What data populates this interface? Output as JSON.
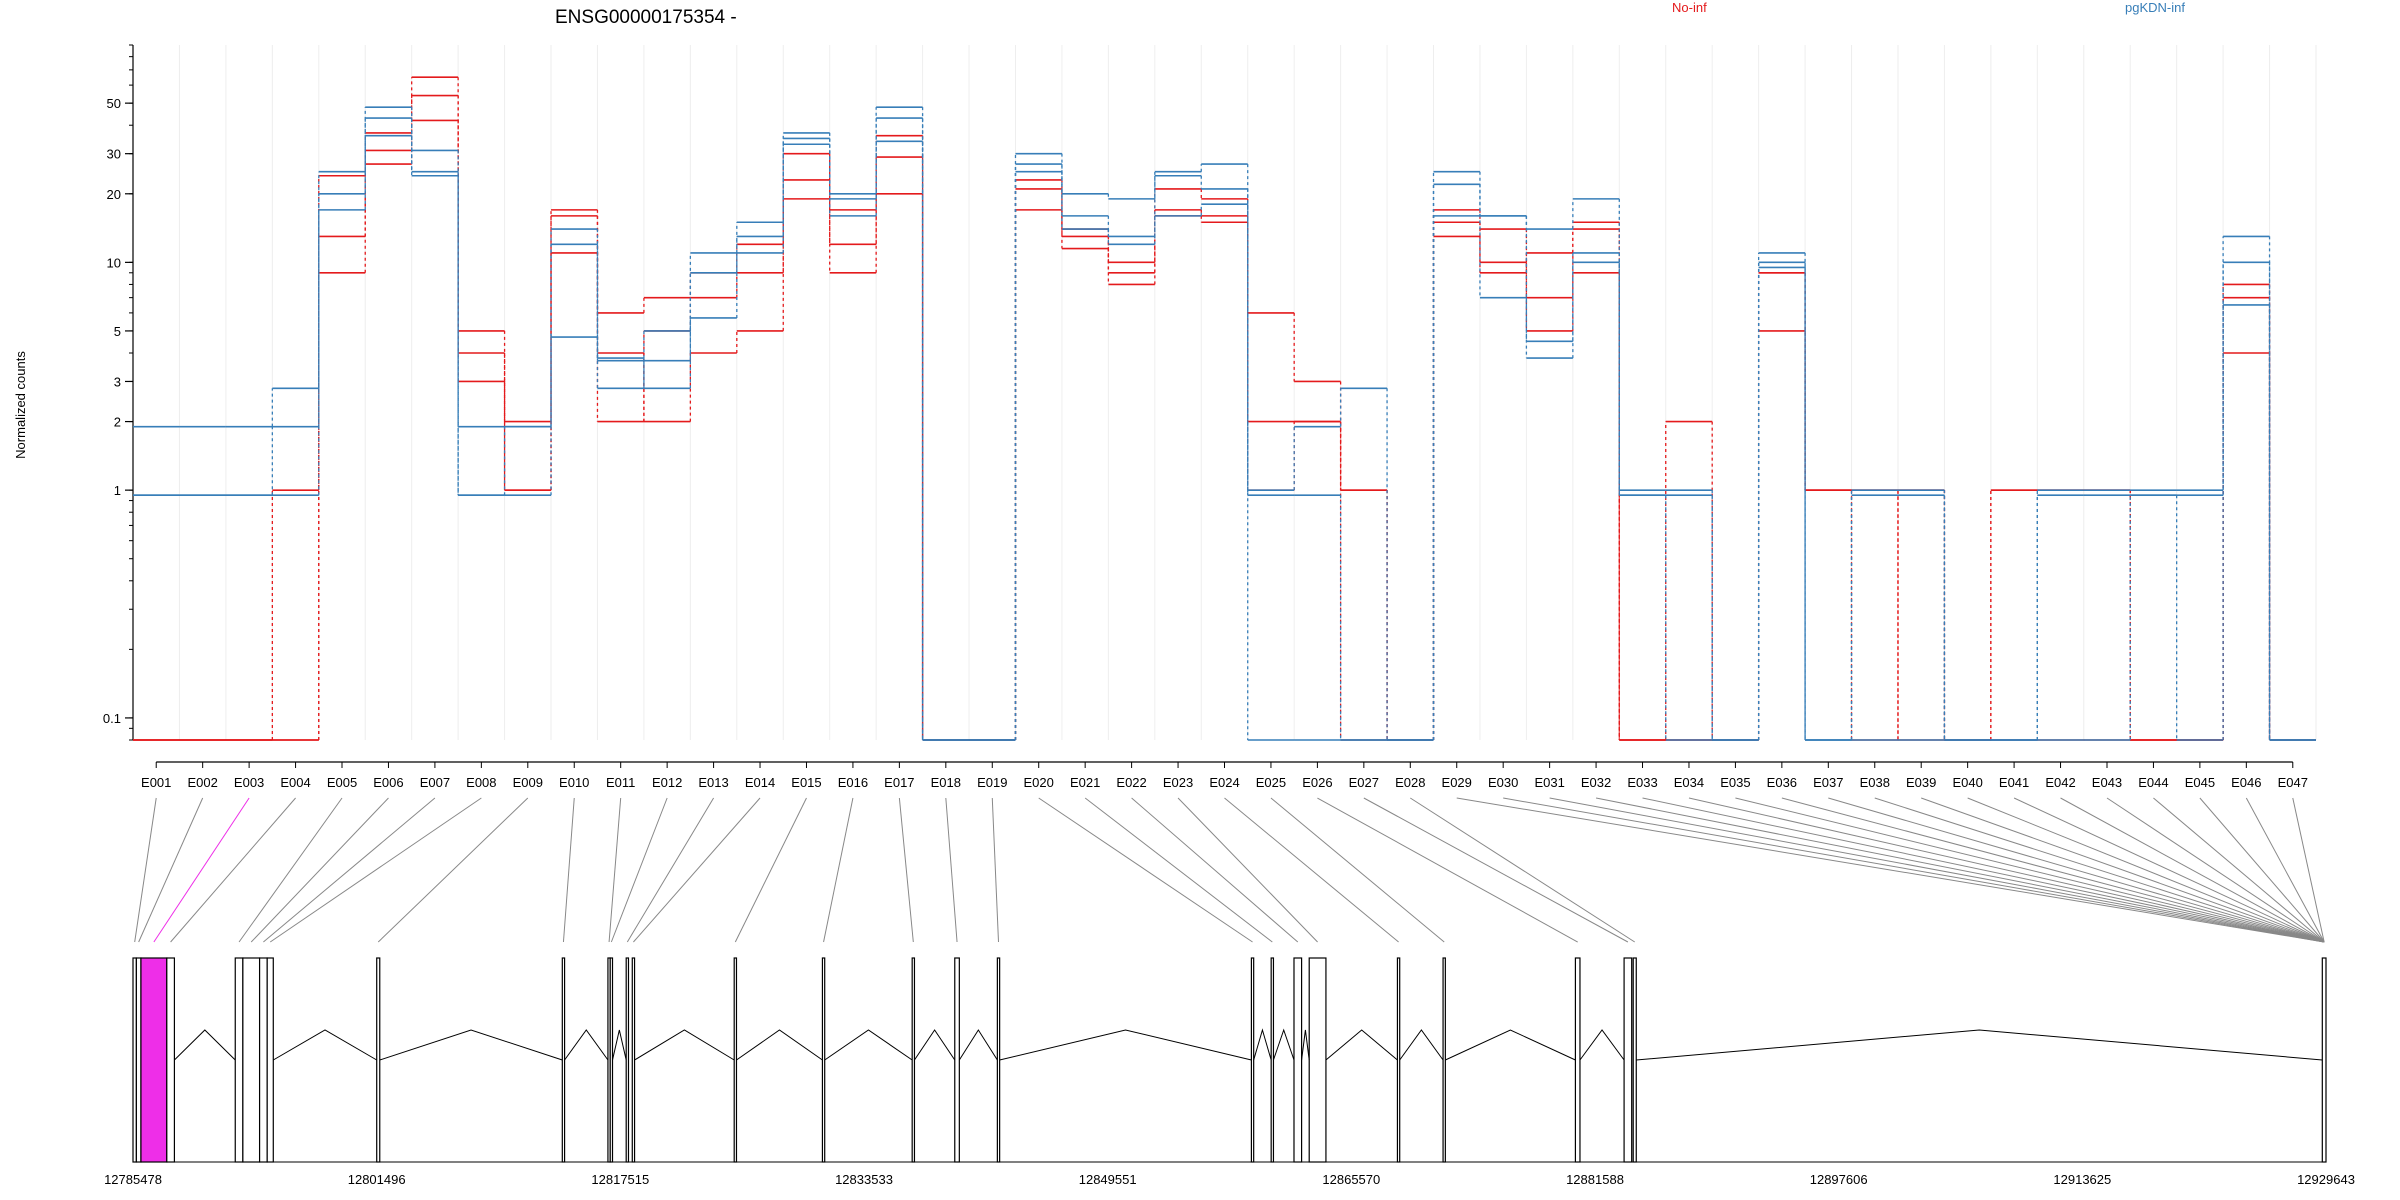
{
  "title": "ENSG00000175354 -",
  "ylabel": "Normalized counts",
  "legend": [
    {
      "label": "No-inf",
      "color": "#e41a1c"
    },
    {
      "label": "pgKDN-inf",
      "color": "#377eb8"
    }
  ],
  "colors": {
    "no_inf": "#e41a1c",
    "pgkdn_inf": "#377eb8",
    "highlight": "#ee2ee8",
    "gene_line": "#000000"
  },
  "chart_data": {
    "type": "line",
    "title": "ENSG00000175354 -",
    "ylabel": "Normalized counts",
    "yscale": "log",
    "ylim": [
      0.08,
      90
    ],
    "grid": "vertical",
    "legend_placement": "top",
    "yticks": [
      {
        "value": 0.1,
        "label": "0.1"
      },
      {
        "value": 1,
        "label": "1"
      },
      {
        "value": 2,
        "label": "2"
      },
      {
        "value": 3,
        "label": "3"
      },
      {
        "value": 5,
        "label": "5"
      },
      {
        "value": 10,
        "label": "10"
      },
      {
        "value": 20,
        "label": "20"
      },
      {
        "value": 30,
        "label": "30"
      },
      {
        "value": 50,
        "label": "50"
      }
    ],
    "categories": [
      "E001",
      "E002",
      "E003",
      "E004",
      "E005",
      "E006",
      "E007",
      "E008",
      "E009",
      "E010",
      "E011",
      "E012",
      "E013",
      "E014",
      "E015",
      "E016",
      "E017",
      "E018",
      "E019",
      "E020",
      "E021",
      "E022",
      "E023",
      "E024",
      "E025",
      "E026",
      "E027",
      "E028",
      "E029",
      "E030",
      "E031",
      "E032",
      "E033",
      "E034",
      "E035",
      "E036",
      "E037",
      "E038",
      "E039",
      "E040",
      "E041",
      "E042",
      "E043",
      "E044",
      "E045",
      "E046",
      "E047"
    ],
    "series": [
      {
        "group": "No-inf",
        "color": "#e41a1c",
        "values": [
          0.08,
          0.08,
          0.08,
          1,
          13,
          27,
          54,
          5,
          1,
          17,
          4,
          2,
          4,
          5,
          23,
          12,
          29,
          0.08,
          0.08,
          17,
          11.5,
          8,
          16,
          15,
          6,
          3,
          1,
          0.08,
          13,
          10,
          7,
          9,
          0.08,
          2,
          0.08,
          5,
          1,
          1,
          1,
          0.08,
          1,
          1,
          1,
          0.08,
          0.08,
          4,
          0.08
        ]
      },
      {
        "group": "No-inf",
        "color": "#e41a1c",
        "values": [
          0.08,
          0.08,
          0.08,
          0.08,
          9,
          31,
          65,
          4,
          2,
          16,
          6,
          7,
          7,
          12,
          19,
          17,
          36,
          0.08,
          0.08,
          21,
          13,
          9,
          17,
          16,
          2,
          2,
          0.08,
          0.08,
          15,
          9,
          11,
          14,
          0.08,
          0.08,
          0.08,
          9,
          1,
          1,
          0.08,
          0.08,
          0.08,
          0.08,
          0.08,
          0.08,
          0.08,
          7,
          0.08
        ]
      },
      {
        "group": "No-inf",
        "color": "#e41a1c",
        "values": [
          0.08,
          0.08,
          0.08,
          0.08,
          24,
          37,
          42,
          3,
          1,
          11,
          2,
          5,
          9,
          9,
          30,
          9,
          20,
          0.08,
          0.08,
          23,
          14,
          10,
          21,
          19,
          1,
          2,
          1,
          0.08,
          17,
          14,
          5,
          15,
          0.08,
          0.08,
          0.08,
          9,
          1,
          0.08,
          1,
          0.08,
          1,
          1,
          1,
          0.08,
          0.08,
          8,
          0.08
        ]
      },
      {
        "group": "pgKDN-inf",
        "color": "#377eb8",
        "values": [
          1.9,
          1.9,
          1.9,
          2.8,
          25,
          36,
          31,
          1.9,
          1.9,
          14,
          2.8,
          5,
          11,
          15,
          35,
          19,
          43,
          0.08,
          0.08,
          30,
          20,
          19,
          25,
          27,
          1,
          1.9,
          2.8,
          0.08,
          25,
          16,
          14,
          19,
          1,
          1,
          0.08,
          11,
          0.08,
          1,
          1,
          0.08,
          0.08,
          1,
          1,
          1,
          1,
          13,
          0.08
        ]
      },
      {
        "group": "pgKDN-inf",
        "color": "#377eb8",
        "values": [
          0.95,
          0.95,
          0.95,
          1.9,
          17,
          48,
          25,
          0.95,
          0.95,
          4.7,
          3.8,
          2.8,
          5.7,
          11,
          37,
          20,
          48,
          0.08,
          0.08,
          25,
          16,
          12,
          24,
          21,
          0.95,
          0.95,
          0.08,
          0.08,
          22,
          7,
          3.8,
          11,
          0.95,
          0.95,
          0.08,
          10,
          0.08,
          0.95,
          0.95,
          0.08,
          0.08,
          0.95,
          0.95,
          0.95,
          0.95,
          10,
          0.08
        ]
      },
      {
        "group": "pgKDN-inf",
        "color": "#377eb8",
        "values": [
          0.95,
          0.95,
          0.95,
          0.95,
          20,
          43,
          24,
          0.95,
          1.9,
          12,
          3.7,
          3.7,
          9,
          13,
          33,
          16,
          34,
          0.08,
          0.08,
          27,
          14,
          13,
          16,
          18,
          0.08,
          0.08,
          0.08,
          0.08,
          16,
          16,
          4.5,
          10,
          0.95,
          0.08,
          0.08,
          9.5,
          0.08,
          0.08,
          0.08,
          0.08,
          0.08,
          0.08,
          0.08,
          0.95,
          0.08,
          6.5,
          0.08
        ]
      }
    ],
    "genomic_axis": {
      "tick_labels": [
        "12785478",
        "12801496",
        "12817515",
        "12833533",
        "12849551",
        "12865570",
        "12881588",
        "12897606",
        "12913625",
        "12929643"
      ],
      "tick_values": [
        12785478,
        12801496,
        12817515,
        12833533,
        12849551,
        12865570,
        12881588,
        12897606,
        12913625,
        12929643
      ],
      "range": [
        12785478,
        12929643
      ]
    },
    "gene_model": {
      "exons": [
        {
          "start": 12785478,
          "end": 12785700
        },
        {
          "start": 12785700,
          "end": 12786000
        },
        {
          "start": 12786000,
          "end": 12787700,
          "highlight": true
        },
        {
          "start": 12787700,
          "end": 12788200
        },
        {
          "start": 12792200,
          "end": 12792700
        },
        {
          "start": 12792700,
          "end": 12793800
        },
        {
          "start": 12793800,
          "end": 12794300
        },
        {
          "start": 12794300,
          "end": 12794700
        },
        {
          "start": 12801500,
          "end": 12801700
        },
        {
          "start": 12813700,
          "end": 12813850
        },
        {
          "start": 12816700,
          "end": 12816850
        },
        {
          "start": 12816850,
          "end": 12817000
        },
        {
          "start": 12817900,
          "end": 12818050
        },
        {
          "start": 12818300,
          "end": 12818450
        },
        {
          "start": 12825000,
          "end": 12825150
        },
        {
          "start": 12830800,
          "end": 12830950
        },
        {
          "start": 12836700,
          "end": 12836850
        },
        {
          "start": 12839500,
          "end": 12839800
        },
        {
          "start": 12842300,
          "end": 12842450
        },
        {
          "start": 12859000,
          "end": 12859150
        },
        {
          "start": 12860300,
          "end": 12860450
        },
        {
          "start": 12861800,
          "end": 12862300
        },
        {
          "start": 12862800,
          "end": 12863900
        },
        {
          "start": 12868600,
          "end": 12868750
        },
        {
          "start": 12871600,
          "end": 12871750
        },
        {
          "start": 12880300,
          "end": 12880600
        },
        {
          "start": 12883500,
          "end": 12884000
        },
        {
          "start": 12884100,
          "end": 12884300
        },
        {
          "start": 12929400,
          "end": 12929643
        }
      ]
    }
  }
}
